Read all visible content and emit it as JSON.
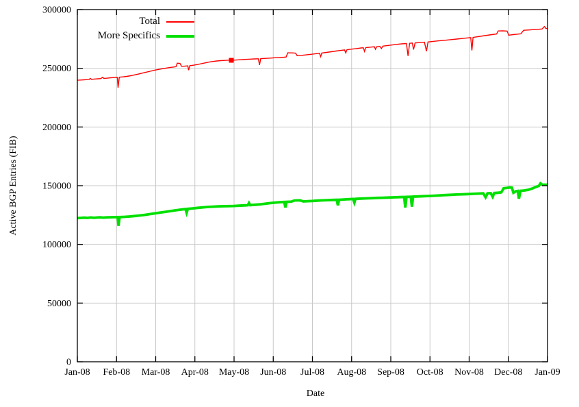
{
  "chart_data": {
    "type": "line",
    "title": "",
    "xlabel": "Date",
    "ylabel": "Active BGP Entries (FIB)",
    "xlim": [
      0,
      12
    ],
    "ylim": [
      0,
      300000
    ],
    "x_ticks": [
      0,
      1,
      2,
      3,
      4,
      5,
      6,
      7,
      8,
      9,
      10,
      11,
      12
    ],
    "x_tick_labels": [
      "Jan-08",
      "Feb-08",
      "Mar-08",
      "Apr-08",
      "May-08",
      "Jun-08",
      "Jul-08",
      "Aug-08",
      "Sep-08",
      "Oct-08",
      "Nov-08",
      "Dec-08",
      "Jan-09"
    ],
    "y_ticks": [
      0,
      50000,
      100000,
      150000,
      200000,
      250000,
      300000
    ],
    "y_tick_labels": [
      "0",
      "50000",
      "100000",
      "150000",
      "200000",
      "250000",
      "300000"
    ],
    "grid": true,
    "grid_color": "#c9c9c9",
    "axis_color": "#000000",
    "legend_position": "top-left-inside",
    "series": [
      {
        "name": "Total",
        "color": "#ff0000",
        "width": 1.4,
        "points": [
          [
            0.0,
            239800
          ],
          [
            0.08,
            240000
          ],
          [
            0.16,
            240150
          ],
          [
            0.24,
            240350
          ],
          [
            0.3,
            240500
          ],
          [
            0.33,
            241400
          ],
          [
            0.36,
            240600
          ],
          [
            0.45,
            240850
          ],
          [
            0.53,
            241050
          ],
          [
            0.6,
            241250
          ],
          [
            0.64,
            242200
          ],
          [
            0.68,
            241400
          ],
          [
            0.76,
            241600
          ],
          [
            0.85,
            241900
          ],
          [
            0.94,
            242100
          ],
          [
            1.02,
            242300
          ],
          [
            1.04,
            233500
          ],
          [
            1.07,
            242400
          ],
          [
            1.16,
            242700
          ],
          [
            1.26,
            243100
          ],
          [
            1.36,
            243700
          ],
          [
            1.46,
            244400
          ],
          [
            1.56,
            245100
          ],
          [
            1.66,
            245900
          ],
          [
            1.76,
            246700
          ],
          [
            1.86,
            247500
          ],
          [
            1.96,
            248300
          ],
          [
            2.06,
            249000
          ],
          [
            2.16,
            249600
          ],
          [
            2.26,
            250100
          ],
          [
            2.36,
            250600
          ],
          [
            2.46,
            251100
          ],
          [
            2.52,
            251400
          ],
          [
            2.55,
            254300
          ],
          [
            2.62,
            254100
          ],
          [
            2.66,
            251700
          ],
          [
            2.76,
            251900
          ],
          [
            2.82,
            252100
          ],
          [
            2.84,
            248400
          ],
          [
            2.87,
            252200
          ],
          [
            2.96,
            252600
          ],
          [
            3.06,
            253200
          ],
          [
            3.16,
            253900
          ],
          [
            3.26,
            254600
          ],
          [
            3.36,
            255300
          ],
          [
            3.46,
            255800
          ],
          [
            3.56,
            256200
          ],
          [
            3.66,
            256500
          ],
          [
            3.76,
            256700
          ],
          [
            3.86,
            256900
          ],
          [
            3.93,
            256800
          ],
          [
            4.02,
            257000
          ],
          [
            4.12,
            257200
          ],
          [
            4.22,
            257400
          ],
          [
            4.32,
            257600
          ],
          [
            4.42,
            257800
          ],
          [
            4.52,
            257950
          ],
          [
            4.62,
            258100
          ],
          [
            4.65,
            252800
          ],
          [
            4.68,
            258200
          ],
          [
            4.8,
            258450
          ],
          [
            4.92,
            258700
          ],
          [
            5.04,
            258950
          ],
          [
            5.16,
            259200
          ],
          [
            5.28,
            259450
          ],
          [
            5.33,
            259600
          ],
          [
            5.37,
            263200
          ],
          [
            5.48,
            263100
          ],
          [
            5.57,
            262900
          ],
          [
            5.61,
            260700
          ],
          [
            5.72,
            261000
          ],
          [
            5.84,
            261400
          ],
          [
            5.96,
            261900
          ],
          [
            6.08,
            262400
          ],
          [
            6.18,
            262800
          ],
          [
            6.21,
            259900
          ],
          [
            6.24,
            263000
          ],
          [
            6.36,
            263500
          ],
          [
            6.48,
            264100
          ],
          [
            6.6,
            264700
          ],
          [
            6.72,
            265200
          ],
          [
            6.82,
            265600
          ],
          [
            6.85,
            263100
          ],
          [
            6.88,
            265800
          ],
          [
            7.0,
            266300
          ],
          [
            7.12,
            266800
          ],
          [
            7.24,
            267300
          ],
          [
            7.3,
            267500
          ],
          [
            7.33,
            264400
          ],
          [
            7.36,
            267600
          ],
          [
            7.48,
            268000
          ],
          [
            7.58,
            268300
          ],
          [
            7.61,
            266200
          ],
          [
            7.64,
            268400
          ],
          [
            7.72,
            268700
          ],
          [
            7.76,
            266800
          ],
          [
            7.8,
            268900
          ],
          [
            7.92,
            269400
          ],
          [
            8.04,
            269900
          ],
          [
            8.16,
            270400
          ],
          [
            8.28,
            270800
          ],
          [
            8.4,
            271100
          ],
          [
            8.44,
            260500
          ],
          [
            8.48,
            271300
          ],
          [
            8.55,
            271500
          ],
          [
            8.58,
            266000
          ],
          [
            8.62,
            271600
          ],
          [
            8.74,
            271900
          ],
          [
            8.86,
            272200
          ],
          [
            8.91,
            264500
          ],
          [
            8.95,
            272400
          ],
          [
            9.08,
            272900
          ],
          [
            9.2,
            273300
          ],
          [
            9.32,
            273700
          ],
          [
            9.44,
            274100
          ],
          [
            9.56,
            274500
          ],
          [
            9.68,
            274900
          ],
          [
            9.8,
            275300
          ],
          [
            9.92,
            275700
          ],
          [
            10.04,
            276100
          ],
          [
            10.07,
            265300
          ],
          [
            10.1,
            276300
          ],
          [
            10.22,
            276900
          ],
          [
            10.34,
            277500
          ],
          [
            10.46,
            278100
          ],
          [
            10.58,
            278700
          ],
          [
            10.7,
            279200
          ],
          [
            10.74,
            281800
          ],
          [
            10.86,
            281900
          ],
          [
            10.97,
            281700
          ],
          [
            11.01,
            278200
          ],
          [
            11.12,
            278700
          ],
          [
            11.24,
            279100
          ],
          [
            11.32,
            279400
          ],
          [
            11.39,
            282400
          ],
          [
            11.5,
            282600
          ],
          [
            11.62,
            282900
          ],
          [
            11.74,
            283200
          ],
          [
            11.86,
            283500
          ],
          [
            11.92,
            285600
          ],
          [
            11.96,
            283900
          ],
          [
            12.0,
            284000
          ]
        ]
      },
      {
        "name": "More Specifics",
        "color": "#00e000",
        "width": 3.8,
        "points": [
          [
            0.0,
            122400
          ],
          [
            0.09,
            122550
          ],
          [
            0.18,
            122750
          ],
          [
            0.26,
            122550
          ],
          [
            0.34,
            122900
          ],
          [
            0.42,
            122650
          ],
          [
            0.5,
            122850
          ],
          [
            0.58,
            123050
          ],
          [
            0.66,
            122800
          ],
          [
            0.74,
            123000
          ],
          [
            0.82,
            123100
          ],
          [
            0.9,
            123150
          ],
          [
            0.98,
            123200
          ],
          [
            1.03,
            123250
          ],
          [
            1.05,
            115800
          ],
          [
            1.08,
            123250
          ],
          [
            1.2,
            123450
          ],
          [
            1.33,
            123750
          ],
          [
            1.46,
            124150
          ],
          [
            1.59,
            124600
          ],
          [
            1.72,
            125150
          ],
          [
            1.85,
            125750
          ],
          [
            1.98,
            126400
          ],
          [
            2.11,
            127050
          ],
          [
            2.24,
            127700
          ],
          [
            2.37,
            128350
          ],
          [
            2.5,
            129000
          ],
          [
            2.63,
            129600
          ],
          [
            2.76,
            130100
          ],
          [
            2.79,
            126900
          ],
          [
            2.82,
            130250
          ],
          [
            2.95,
            130700
          ],
          [
            3.08,
            131150
          ],
          [
            3.21,
            131550
          ],
          [
            3.34,
            131900
          ],
          [
            3.47,
            132150
          ],
          [
            3.6,
            132350
          ],
          [
            3.73,
            132500
          ],
          [
            3.86,
            132600
          ],
          [
            3.99,
            132750
          ],
          [
            4.12,
            132950
          ],
          [
            4.25,
            133200
          ],
          [
            4.35,
            133350
          ],
          [
            4.38,
            135300
          ],
          [
            4.41,
            133450
          ],
          [
            4.54,
            133750
          ],
          [
            4.67,
            134150
          ],
          [
            4.8,
            134650
          ],
          [
            4.93,
            135200
          ],
          [
            5.06,
            135650
          ],
          [
            5.19,
            136000
          ],
          [
            5.28,
            136150
          ],
          [
            5.31,
            131500
          ],
          [
            5.34,
            136200
          ],
          [
            5.46,
            136400
          ],
          [
            5.54,
            137400
          ],
          [
            5.68,
            137500
          ],
          [
            5.77,
            136600
          ],
          [
            5.88,
            136800
          ],
          [
            6.0,
            137000
          ],
          [
            6.13,
            137250
          ],
          [
            6.26,
            137500
          ],
          [
            6.39,
            137700
          ],
          [
            6.52,
            137850
          ],
          [
            6.62,
            137950
          ],
          [
            6.65,
            133200
          ],
          [
            6.68,
            138000
          ],
          [
            6.81,
            138250
          ],
          [
            6.94,
            138500
          ],
          [
            7.04,
            138700
          ],
          [
            7.07,
            135600
          ],
          [
            7.1,
            138800
          ],
          [
            7.24,
            139000
          ],
          [
            7.38,
            139200
          ],
          [
            7.52,
            139400
          ],
          [
            7.66,
            139600
          ],
          [
            7.8,
            139750
          ],
          [
            7.94,
            139900
          ],
          [
            8.08,
            140050
          ],
          [
            8.22,
            140250
          ],
          [
            8.34,
            140350
          ],
          [
            8.37,
            131400
          ],
          [
            8.4,
            140450
          ],
          [
            8.51,
            140550
          ],
          [
            8.54,
            132100
          ],
          [
            8.57,
            140650
          ],
          [
            8.7,
            140850
          ],
          [
            8.84,
            141050
          ],
          [
            8.98,
            141250
          ],
          [
            9.12,
            141500
          ],
          [
            9.26,
            141750
          ],
          [
            9.4,
            142000
          ],
          [
            9.54,
            142250
          ],
          [
            9.68,
            142450
          ],
          [
            9.82,
            142650
          ],
          [
            9.96,
            142850
          ],
          [
            10.1,
            143050
          ],
          [
            10.24,
            143300
          ],
          [
            10.36,
            143450
          ],
          [
            10.42,
            140100
          ],
          [
            10.47,
            143550
          ],
          [
            10.55,
            143650
          ],
          [
            10.6,
            140500
          ],
          [
            10.64,
            143750
          ],
          [
            10.74,
            144000
          ],
          [
            10.82,
            144300
          ],
          [
            10.88,
            147800
          ],
          [
            10.96,
            148100
          ],
          [
            11.04,
            148500
          ],
          [
            11.09,
            148300
          ],
          [
            11.13,
            144000
          ],
          [
            11.19,
            145200
          ],
          [
            11.24,
            145500
          ],
          [
            11.27,
            138900
          ],
          [
            11.31,
            145600
          ],
          [
            11.41,
            145900
          ],
          [
            11.51,
            146500
          ],
          [
            11.61,
            147600
          ],
          [
            11.71,
            149000
          ],
          [
            11.78,
            149800
          ],
          [
            11.82,
            152000
          ],
          [
            11.87,
            150700
          ],
          [
            11.93,
            150900
          ],
          [
            12.0,
            150800
          ]
        ]
      }
    ],
    "marker": {
      "series": "Total",
      "x": 3.93,
      "y": 256800,
      "color": "#ff0000",
      "shape": "filled-square"
    }
  }
}
